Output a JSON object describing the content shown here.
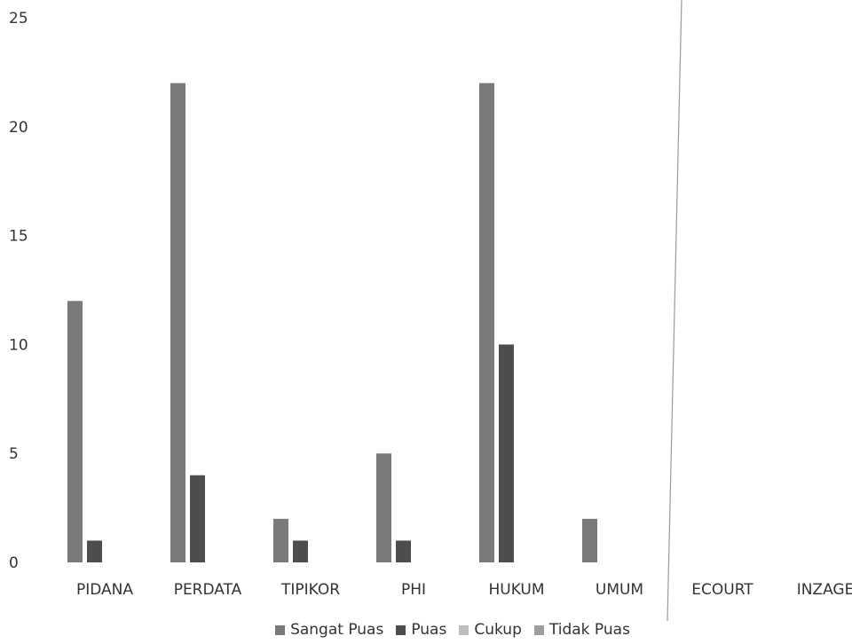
{
  "chart_data": {
    "type": "bar",
    "title": "",
    "xlabel": "",
    "ylabel": "",
    "ylim": [
      0,
      25
    ],
    "yticks": [
      0,
      5,
      10,
      15,
      20,
      25
    ],
    "grid": false,
    "legend_position": "bottom",
    "categories": [
      "PIDANA",
      "PERDATA",
      "TIPIKOR",
      "PHI",
      "HUKUM",
      "UMUM",
      "ECOURT",
      "INZAGE"
    ],
    "series": [
      {
        "name": "Sangat Puas",
        "color": "#7a7a7a",
        "values": [
          12,
          22,
          2,
          5,
          22,
          2,
          null,
          null
        ]
      },
      {
        "name": "Puas",
        "color": "#4d4d4d",
        "values": [
          1,
          4,
          1,
          1,
          10,
          null,
          null,
          null
        ]
      },
      {
        "name": "Cukup",
        "color": "#bdbdbd",
        "values": [
          null,
          null,
          null,
          null,
          null,
          null,
          null,
          null
        ]
      },
      {
        "name": "Tidak Puas",
        "color": "#9e9e9e",
        "values": [
          null,
          null,
          null,
          null,
          null,
          null,
          null,
          null
        ]
      }
    ]
  }
}
